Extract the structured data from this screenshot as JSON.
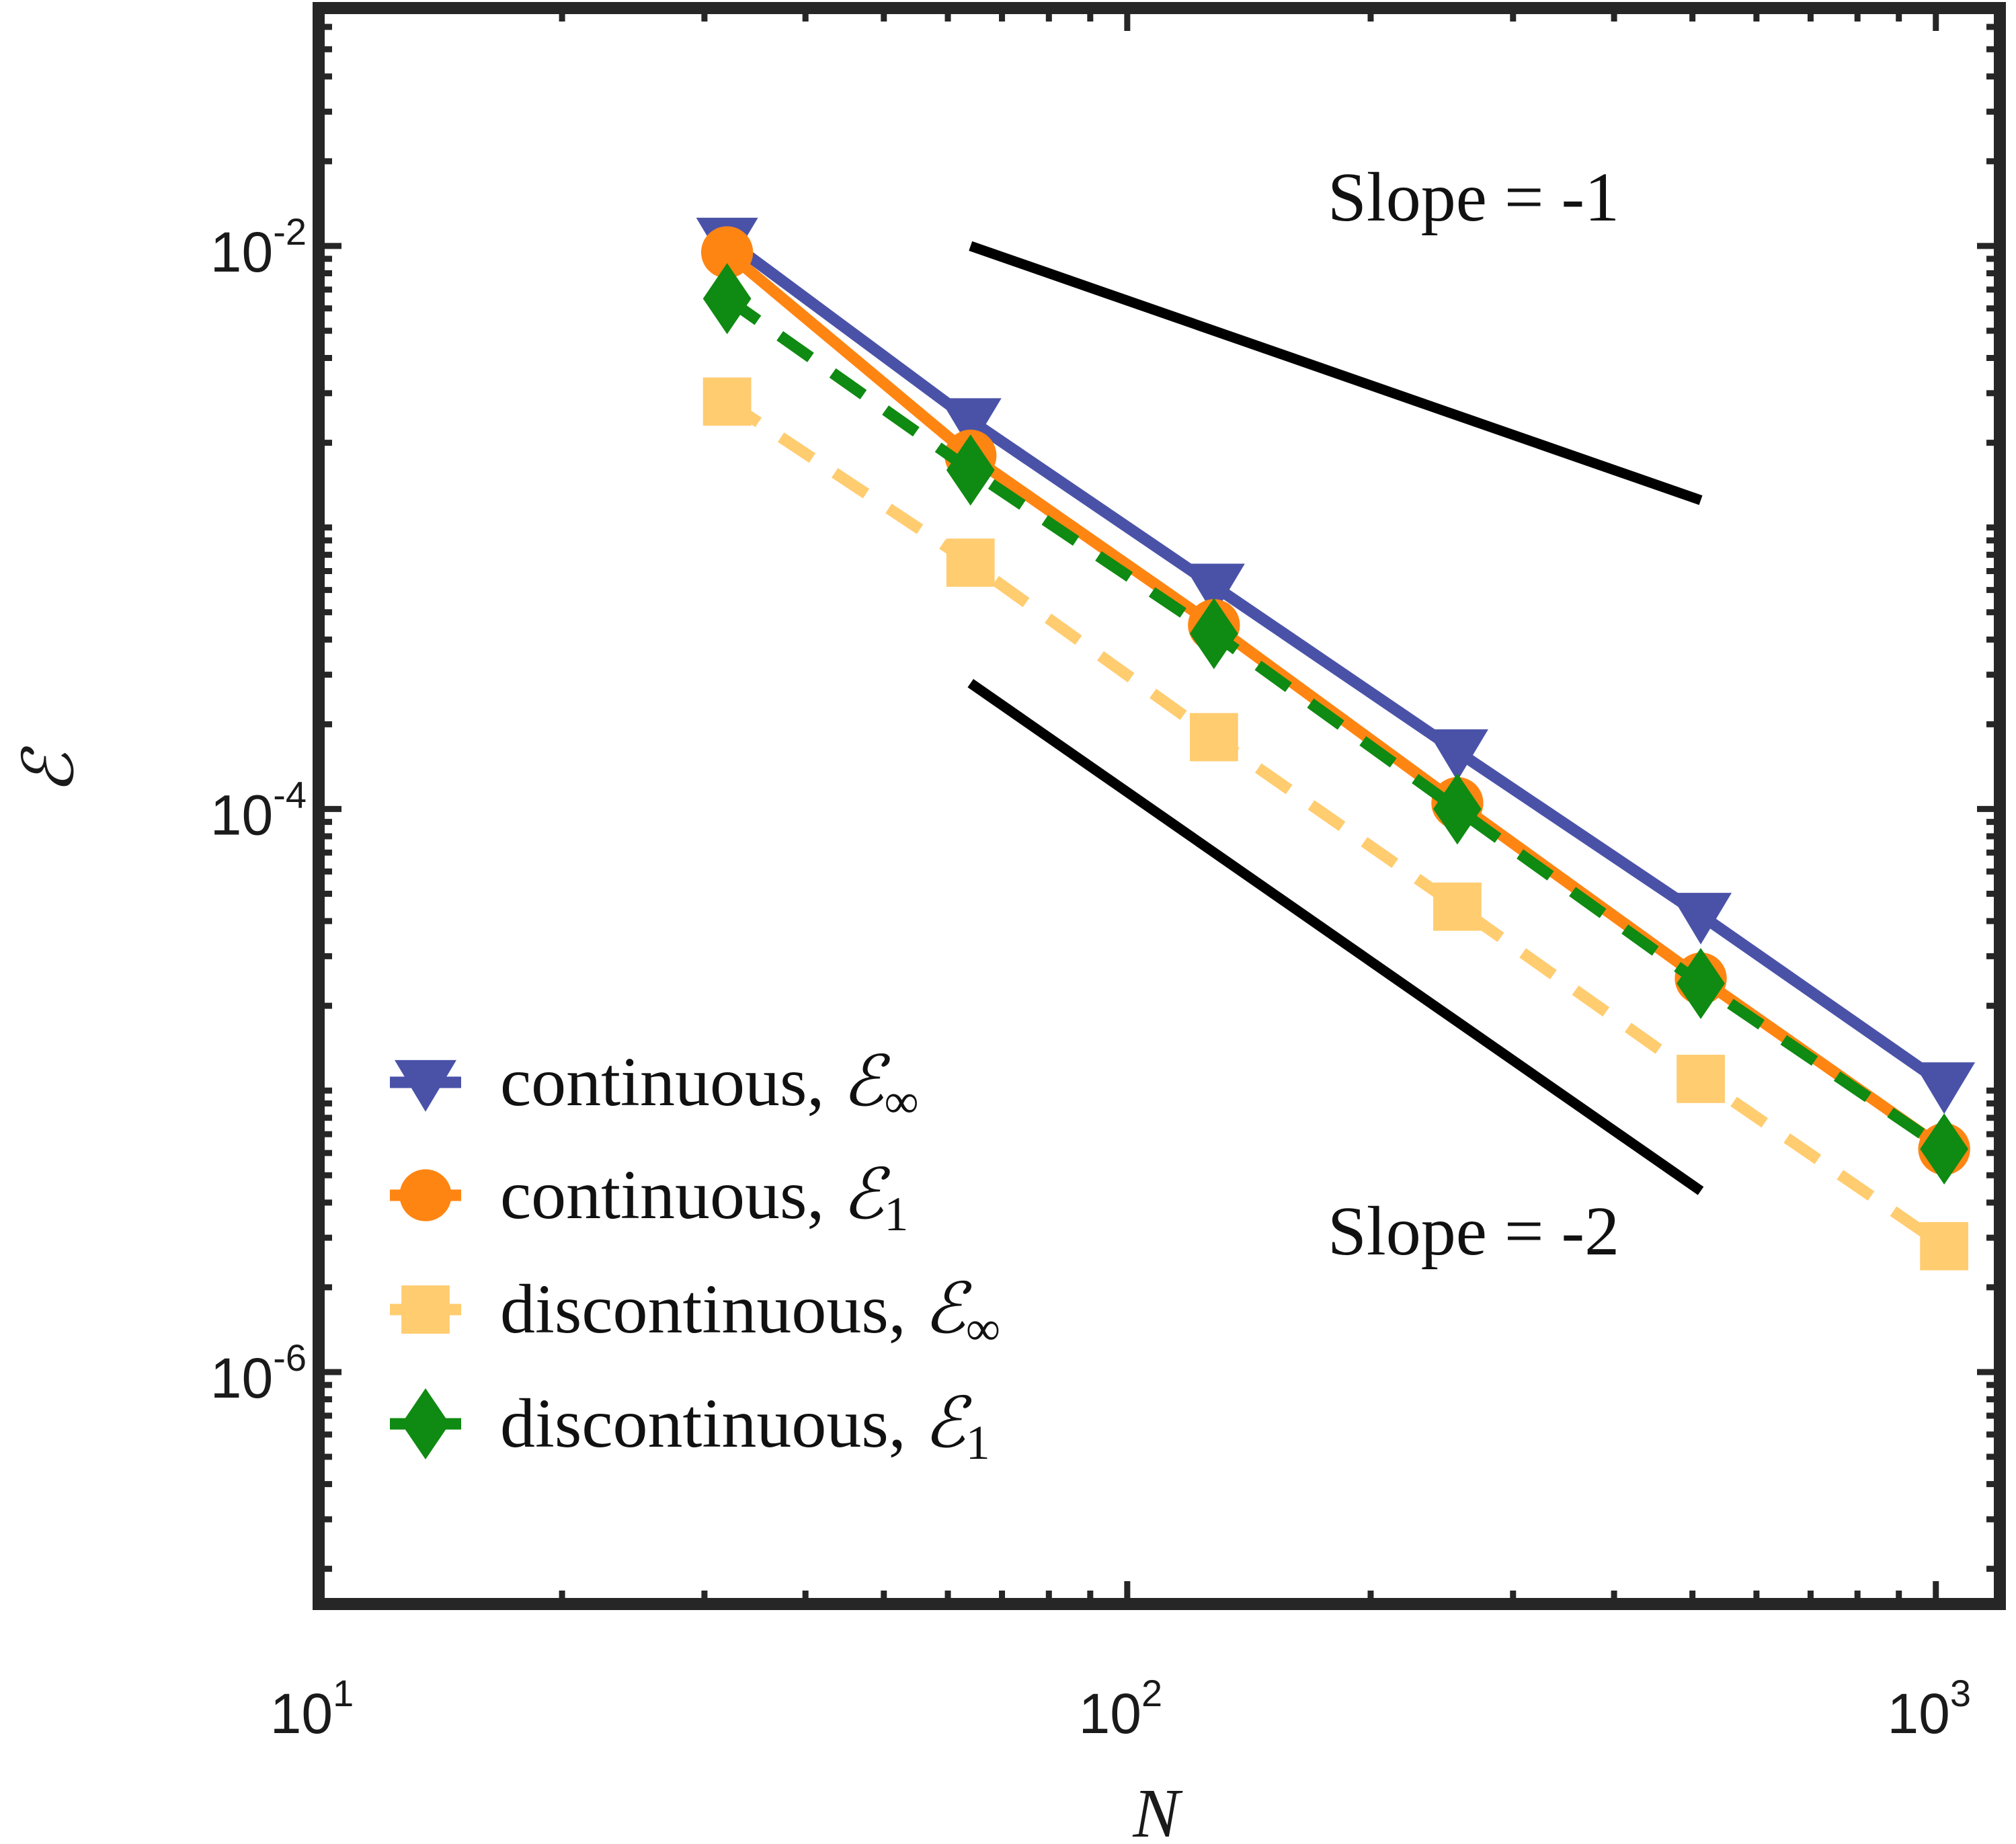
{
  "chart_data": {
    "type": "line",
    "xscale": "log",
    "yscale": "log",
    "xlim": [
      10,
      1200
    ],
    "ylim": [
      1.5e-07,
      0.07
    ],
    "xlabel": "N",
    "ylabel": "ℰ",
    "x_ticks": [
      {
        "base": "10",
        "exp": "1",
        "value": 10
      },
      {
        "base": "10",
        "exp": "2",
        "value": 100
      },
      {
        "base": "10",
        "exp": "3",
        "value": 1000
      }
    ],
    "y_ticks": [
      {
        "base": "10",
        "exp": "-2",
        "value": 0.01
      },
      {
        "base": "10",
        "exp": "-4",
        "value": 0.0001
      },
      {
        "base": "10",
        "exp": "-6",
        "value": 1e-06
      }
    ],
    "x": [
      32,
      64,
      128,
      256,
      512,
      1024
    ],
    "series": [
      {
        "name": "continuous, ℰ∞",
        "label_text": "continuous, ",
        "label_math": "ℰ",
        "label_sub": "∞",
        "color": "#4a52a8",
        "marker": "triangle-down",
        "dash": "solid",
        "values": [
          0.0105,
          0.0024,
          0.00062,
          0.00016,
          4.2e-05,
          1.05e-05
        ]
      },
      {
        "name": "continuous, ℰ1",
        "label_text": "continuous, ",
        "label_math": "ℰ",
        "label_sub": "1",
        "color": "#ff8512",
        "marker": "circle",
        "dash": "solid",
        "values": [
          0.0095,
          0.0018,
          0.00045,
          0.000105,
          2.5e-05,
          6.2e-06
        ]
      },
      {
        "name": "discontinuous, ℰ∞",
        "label_text": "discontinuous, ",
        "label_math": "ℰ",
        "label_sub": "∞",
        "color": "#ffcc70",
        "marker": "square",
        "dash": "dashed",
        "values": [
          0.0028,
          0.00075,
          0.00018,
          4.5e-05,
          1.1e-05,
          2.8e-06
        ]
      },
      {
        "name": "discontinuous, ℰ1",
        "label_text": "discontinuous, ",
        "label_math": "ℰ",
        "label_sub": "1",
        "color": "#0f8a12",
        "marker": "diamond",
        "dash": "dashed",
        "values": [
          0.0065,
          0.0016,
          0.00042,
          0.0001,
          2.4e-05,
          6.2e-06
        ]
      }
    ],
    "reference_lines": [
      {
        "label": "Slope = -1",
        "color": "#000000",
        "x": [
          64,
          512
        ],
        "y": [
          0.01,
          0.00125
        ]
      },
      {
        "label": "Slope = -2",
        "color": "#000000",
        "x": [
          64,
          512
        ],
        "y": [
          0.00028,
          4.4e-06
        ]
      }
    ],
    "legend_position": "lower-left",
    "grid": false
  }
}
